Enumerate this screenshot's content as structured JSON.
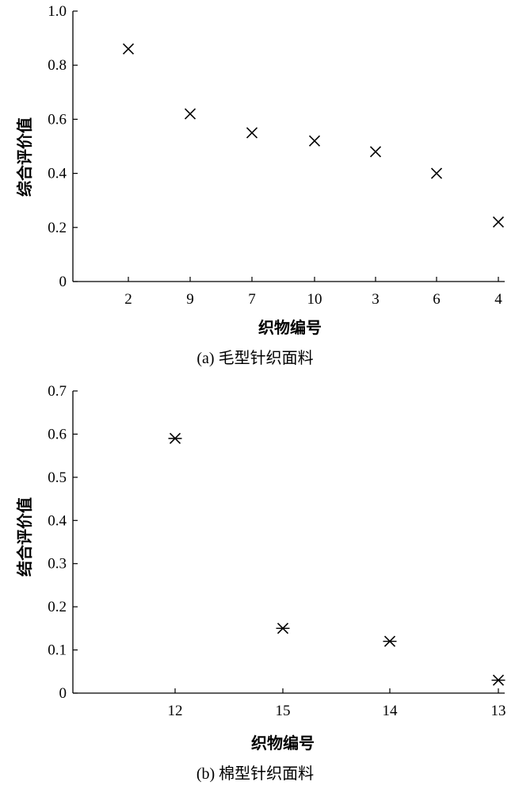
{
  "chart_data": [
    {
      "type": "scatter",
      "marker": "x",
      "xlabel": "织物编号",
      "ylabel": "综合评价值",
      "caption": "(a) 毛型针织面料",
      "categories": [
        "2",
        "9",
        "7",
        "10",
        "3",
        "6",
        "4"
      ],
      "values": [
        0.86,
        0.62,
        0.55,
        0.52,
        0.48,
        0.4,
        0.22
      ],
      "ylim": [
        0,
        1.0
      ],
      "yticks": [
        "0",
        "0.2",
        "0.4",
        "0.6",
        "0.8",
        "1.0"
      ],
      "grid": false
    },
    {
      "type": "scatter",
      "marker": "x",
      "xlabel": "织物编号",
      "ylabel": "结合评价值",
      "caption": "(b) 棉型针织面料",
      "categories": [
        "12",
        "15",
        "14",
        "13"
      ],
      "values": [
        0.59,
        0.15,
        0.12,
        0.03
      ],
      "ylim": [
        0,
        0.7
      ],
      "yticks": [
        "0",
        "0.1",
        "0.2",
        "0.3",
        "0.4",
        "0.5",
        "0.6",
        "0.7"
      ],
      "grid": false
    }
  ]
}
